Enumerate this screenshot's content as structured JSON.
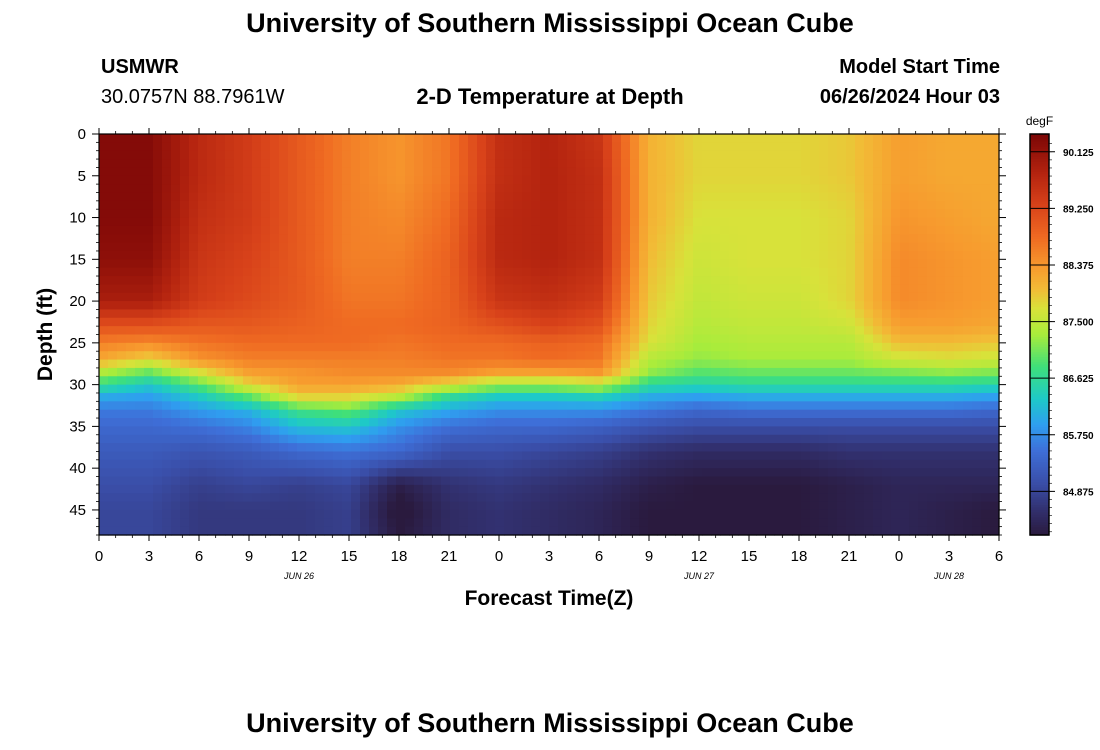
{
  "header": {
    "title": "University of Southern Mississippi Ocean Cube",
    "station": "USMWR",
    "coords": "30.0757N  88.7961W",
    "subtitle": "2-D Temperature at Depth",
    "model_label": "Model Start Time",
    "model_time": "06/26/2024 Hour 03"
  },
  "footer": {
    "title": "University of Southern Mississippi Ocean Cube"
  },
  "chart_data": {
    "type": "heatmap",
    "title": "2-D Temperature at Depth",
    "xlabel": "Forecast Time(Z)",
    "ylabel": "Depth (ft)",
    "units": "degF",
    "x_range_hours": [
      0,
      54
    ],
    "y_range_ft": [
      0,
      48
    ],
    "x_ticks": [
      0,
      3,
      6,
      9,
      12,
      15,
      18,
      21,
      24,
      27,
      30,
      33,
      36,
      39,
      42,
      45,
      48,
      51,
      54
    ],
    "x_tick_labels": [
      "0",
      "3",
      "6",
      "9",
      "12",
      "15",
      "18",
      "21",
      "0",
      "3",
      "6",
      "9",
      "12",
      "15",
      "18",
      "21",
      "0",
      "3",
      "6"
    ],
    "y_ticks": [
      0,
      5,
      10,
      15,
      20,
      25,
      30,
      35,
      40,
      45
    ],
    "y_tick_labels": [
      "0",
      "5",
      "10",
      "15",
      "20",
      "25",
      "30",
      "35",
      "40",
      "45"
    ],
    "date_labels": [
      {
        "hour": 12,
        "text": "JUN 26"
      },
      {
        "hour": 36,
        "text": "JUN 27"
      },
      {
        "hour": 51,
        "text": "JUN 28"
      }
    ],
    "colorbar": {
      "min": 84.2,
      "max": 90.4,
      "ticks": [
        90.125,
        89.25,
        88.375,
        87.5,
        86.625,
        85.75,
        84.875
      ],
      "tick_labels": [
        "90.125",
        "89.250",
        "88.375",
        "87.500",
        "86.625",
        "85.750",
        "84.875"
      ],
      "stops": [
        {
          "v": 84.2,
          "c": "#2a1a3e"
        },
        {
          "v": 84.55,
          "c": "#312e6a"
        },
        {
          "v": 85.0,
          "c": "#3a4ea8"
        },
        {
          "v": 85.5,
          "c": "#3e6fd8"
        },
        {
          "v": 85.9,
          "c": "#2f9ef0"
        },
        {
          "v": 86.3,
          "c": "#1ec9c8"
        },
        {
          "v": 86.8,
          "c": "#3fe07a"
        },
        {
          "v": 87.3,
          "c": "#a9ec3b"
        },
        {
          "v": 87.7,
          "c": "#d8e23a"
        },
        {
          "v": 88.0,
          "c": "#f2bb36"
        },
        {
          "v": 88.35,
          "c": "#f79a2e"
        },
        {
          "v": 88.8,
          "c": "#ef6a22"
        },
        {
          "v": 89.3,
          "c": "#d8421a"
        },
        {
          "v": 89.8,
          "c": "#b3230f"
        },
        {
          "v": 90.4,
          "c": "#7b0606"
        }
      ]
    },
    "grid_hours": [
      0,
      3,
      6,
      9,
      12,
      15,
      18,
      21,
      24,
      27,
      30,
      33,
      36,
      39,
      42,
      45,
      48,
      51,
      54
    ],
    "grid_depths_ft": [
      0,
      5,
      10,
      15,
      20,
      23,
      25,
      27,
      28.5,
      30,
      31.5,
      33,
      35,
      38,
      42,
      45,
      48
    ],
    "temperature_degF": [
      [
        90.3,
        90.3,
        90.3,
        90.2,
        89.9,
        89.1,
        88.6,
        88.2,
        87.4,
        86.7,
        86.0,
        85.6,
        85.4,
        85.2,
        85.0,
        84.9,
        84.9
      ],
      [
        90.3,
        90.3,
        90.3,
        90.2,
        89.9,
        89.1,
        88.5,
        87.8,
        87.0,
        86.3,
        85.9,
        85.6,
        85.4,
        85.2,
        85.0,
        84.9,
        84.9
      ],
      [
        89.7,
        89.7,
        89.6,
        89.5,
        89.4,
        89.0,
        88.7,
        88.4,
        87.7,
        86.9,
        86.3,
        85.9,
        85.5,
        85.1,
        84.8,
        84.7,
        84.7
      ],
      [
        89.4,
        89.4,
        89.4,
        89.3,
        89.2,
        89.0,
        88.8,
        88.6,
        88.3,
        87.8,
        86.9,
        86.1,
        85.7,
        85.2,
        84.9,
        84.7,
        84.7
      ],
      [
        89.0,
        89.0,
        89.0,
        89.0,
        89.0,
        88.9,
        88.8,
        88.6,
        88.4,
        88.3,
        87.8,
        86.8,
        86.2,
        85.4,
        84.8,
        84.7,
        84.7
      ],
      [
        88.6,
        88.6,
        88.6,
        88.6,
        88.7,
        88.8,
        88.8,
        88.6,
        88.5,
        88.3,
        87.8,
        87.0,
        86.3,
        85.5,
        84.9,
        84.8,
        84.8
      ],
      [
        88.4,
        88.4,
        88.5,
        88.6,
        88.7,
        88.8,
        88.7,
        88.6,
        88.5,
        88.2,
        87.4,
        86.3,
        85.8,
        85.4,
        84.3,
        84.1,
        84.2
      ],
      [
        88.7,
        88.7,
        88.8,
        88.9,
        88.9,
        88.9,
        88.8,
        88.7,
        88.5,
        87.7,
        86.6,
        86.0,
        85.5,
        85.0,
        84.6,
        84.5,
        84.5
      ],
      [
        89.6,
        89.6,
        89.7,
        89.7,
        89.5,
        89.1,
        88.8,
        88.7,
        88.3,
        87.3,
        86.3,
        85.8,
        85.4,
        85.0,
        84.7,
        84.6,
        84.6
      ],
      [
        89.8,
        89.8,
        89.8,
        89.8,
        89.6,
        89.3,
        88.9,
        88.8,
        88.3,
        87.3,
        86.3,
        85.8,
        85.4,
        84.9,
        84.6,
        84.5,
        84.5
      ],
      [
        89.5,
        89.6,
        89.6,
        89.6,
        89.4,
        89.1,
        88.8,
        88.7,
        88.4,
        87.5,
        86.4,
        85.8,
        85.3,
        84.8,
        84.5,
        84.4,
        84.4
      ],
      [
        88.1,
        88.1,
        88.1,
        88.0,
        87.9,
        87.8,
        87.7,
        87.4,
        87.2,
        86.6,
        86.0,
        85.6,
        85.1,
        84.6,
        84.3,
        84.2,
        84.2
      ],
      [
        87.8,
        87.8,
        87.7,
        87.6,
        87.5,
        87.4,
        87.3,
        87.2,
        86.9,
        86.5,
        85.9,
        85.4,
        85.0,
        84.5,
        84.2,
        84.2,
        84.2
      ],
      [
        87.8,
        87.8,
        87.7,
        87.7,
        87.6,
        87.5,
        87.4,
        87.3,
        87.0,
        86.6,
        86.0,
        85.5,
        85.0,
        84.5,
        84.2,
        84.2,
        84.2
      ],
      [
        87.8,
        87.8,
        87.7,
        87.7,
        87.6,
        87.5,
        87.4,
        87.3,
        87.0,
        86.6,
        86.0,
        85.5,
        85.0,
        84.5,
        84.2,
        84.2,
        84.2
      ],
      [
        87.9,
        87.9,
        87.8,
        87.8,
        87.8,
        87.6,
        87.4,
        87.3,
        87.0,
        86.6,
        86.0,
        85.5,
        85.0,
        84.6,
        84.3,
        84.3,
        84.3
      ],
      [
        88.3,
        88.3,
        88.4,
        88.5,
        88.5,
        88.3,
        88.0,
        87.6,
        87.1,
        86.6,
        86.0,
        85.5,
        85.0,
        84.6,
        84.4,
        84.4,
        84.4
      ],
      [
        88.2,
        88.2,
        88.3,
        88.4,
        88.4,
        88.3,
        88.0,
        87.7,
        87.2,
        86.6,
        86.0,
        85.5,
        85.0,
        84.6,
        84.4,
        84.3,
        84.3
      ],
      [
        88.2,
        88.2,
        88.2,
        88.3,
        88.3,
        88.2,
        87.9,
        87.6,
        87.1,
        86.5,
        85.9,
        85.4,
        85.0,
        84.6,
        84.4,
        84.2,
        84.2
      ]
    ]
  }
}
